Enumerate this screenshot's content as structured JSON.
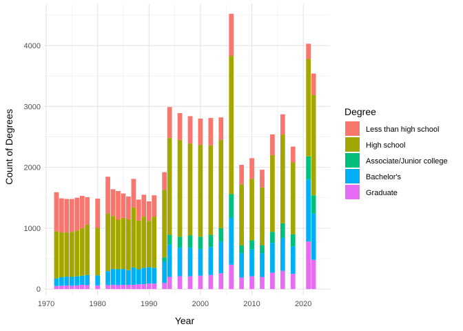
{
  "chart_data": {
    "type": "bar",
    "stacked": true,
    "xlabel": "Year",
    "ylabel": "Count of Degrees",
    "xlim": [
      1969.6,
      2025.2
    ],
    "ylim": [
      -100,
      4680
    ],
    "x_ticks": [
      1970,
      1980,
      1990,
      2000,
      2010,
      2020
    ],
    "y_ticks": [
      0,
      1000,
      2000,
      3000,
      4000
    ],
    "grid": true,
    "legend": {
      "title": "Degree",
      "position": "right",
      "entries": [
        {
          "label": "Less than high school",
          "color": "#F8766D"
        },
        {
          "label": "High school",
          "color": "#A3A500"
        },
        {
          "label": "Associate/Junior college",
          "color": "#00BF7D"
        },
        {
          "label": "Bachelor's",
          "color": "#00B0F6"
        },
        {
          "label": "Graduate",
          "color": "#E76BF3"
        }
      ]
    },
    "stack_order": [
      "Graduate",
      "Bachelor's",
      "Associate/Junior college",
      "High school",
      "Less than high school"
    ],
    "years": [
      1972,
      1973,
      1974,
      1975,
      1976,
      1977,
      1978,
      1980,
      1982,
      1983,
      1984,
      1985,
      1986,
      1987,
      1988,
      1989,
      1990,
      1991,
      1993,
      1994,
      1996,
      1998,
      2000,
      2002,
      2004,
      2006,
      2008,
      2010,
      2012,
      2014,
      2016,
      2018,
      2021,
      2022
    ],
    "series": [
      {
        "name": "Graduate",
        "values": [
          50,
          55,
          60,
          55,
          60,
          70,
          65,
          60,
          65,
          70,
          65,
          70,
          70,
          70,
          80,
          80,
          90,
          90,
          100,
          200,
          210,
          210,
          220,
          230,
          260,
          400,
          190,
          210,
          200,
          270,
          300,
          250,
          780,
          480
        ]
      },
      {
        "name": "Bachelor's",
        "values": [
          125,
          140,
          145,
          145,
          150,
          150,
          165,
          165,
          230,
          260,
          260,
          260,
          240,
          285,
          245,
          270,
          270,
          260,
          350,
          530,
          470,
          470,
          440,
          460,
          520,
          770,
          400,
          440,
          390,
          490,
          540,
          450,
          1020,
          760
        ]
      },
      {
        "name": "Associate/Junior college",
        "values": [
          0,
          0,
          0,
          0,
          0,
          0,
          0,
          0,
          0,
          0,
          0,
          0,
          0,
          0,
          0,
          0,
          0,
          0,
          70,
          160,
          180,
          200,
          200,
          200,
          220,
          390,
          130,
          150,
          130,
          180,
          240,
          200,
          380,
          300
        ]
      },
      {
        "name": "High school",
        "values": [
          775,
          735,
          725,
          740,
          750,
          780,
          830,
          780,
          950,
          870,
          815,
          840,
          840,
          985,
          800,
          840,
          760,
          840,
          1110,
          1590,
          1590,
          1510,
          1510,
          1470,
          1450,
          2270,
          1000,
          1010,
          950,
          1260,
          1460,
          1180,
          1600,
          1650
        ]
      },
      {
        "name": "Less than high school",
        "values": [
          640,
          560,
          550,
          540,
          540,
          530,
          450,
          480,
          600,
          440,
          470,
          400,
          370,
          470,
          345,
          360,
          320,
          350,
          290,
          510,
          440,
          450,
          430,
          450,
          370,
          690,
          320,
          340,
          290,
          340,
          330,
          260,
          250,
          350
        ]
      }
    ]
  }
}
